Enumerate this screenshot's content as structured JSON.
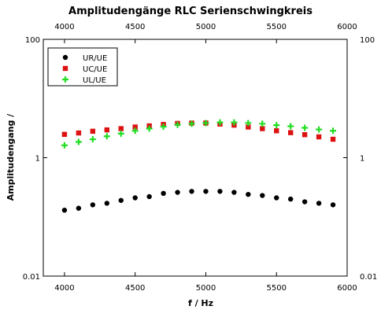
{
  "chart_data": {
    "type": "scatter",
    "title": "Amplitudengänge RLC Serienschwingkreis",
    "xlabel": "f / Hz",
    "ylabel": "Amplitudengang /",
    "xlim": [
      3850,
      6000
    ],
    "ylim": [
      0.01,
      100
    ],
    "yscale": "log",
    "x_ticks": [
      4000,
      4500,
      5000,
      5500,
      6000
    ],
    "x_tick_labels": [
      "4000",
      "4500",
      "5000",
      "5500",
      "6000"
    ],
    "y_ticks": [
      0.01,
      1,
      100
    ],
    "y_tick_labels": [
      "0.01",
      "1",
      "100"
    ],
    "grid": false,
    "legend_position": "top-left",
    "x": [
      4000,
      4100,
      4200,
      4300,
      4400,
      4500,
      4600,
      4700,
      4800,
      4900,
      5000,
      5100,
      5200,
      5300,
      5400,
      5500,
      5600,
      5700,
      5800,
      5900
    ],
    "series": [
      {
        "name": "UR/UE",
        "color": "#000000",
        "marker": "circle",
        "values": [
          0.13,
          0.14,
          0.16,
          0.17,
          0.19,
          0.21,
          0.22,
          0.25,
          0.26,
          0.27,
          0.27,
          0.27,
          0.26,
          0.24,
          0.23,
          0.21,
          0.2,
          0.18,
          0.17,
          0.16
        ]
      },
      {
        "name": "UC/UE",
        "color": "#dd1111",
        "marker": "square",
        "values": [
          2.48,
          2.62,
          2.8,
          2.95,
          3.1,
          3.3,
          3.45,
          3.65,
          3.8,
          3.85,
          3.85,
          3.7,
          3.55,
          3.3,
          3.1,
          2.85,
          2.65,
          2.45,
          2.25,
          2.05
        ]
      },
      {
        "name": "UL/UE",
        "color": "#22dd22",
        "marker": "plus",
        "values": [
          1.62,
          1.85,
          2.05,
          2.3,
          2.55,
          2.85,
          3.1,
          3.35,
          3.6,
          3.75,
          3.85,
          3.95,
          3.95,
          3.85,
          3.75,
          3.55,
          3.4,
          3.2,
          3.0,
          2.85
        ]
      }
    ]
  }
}
